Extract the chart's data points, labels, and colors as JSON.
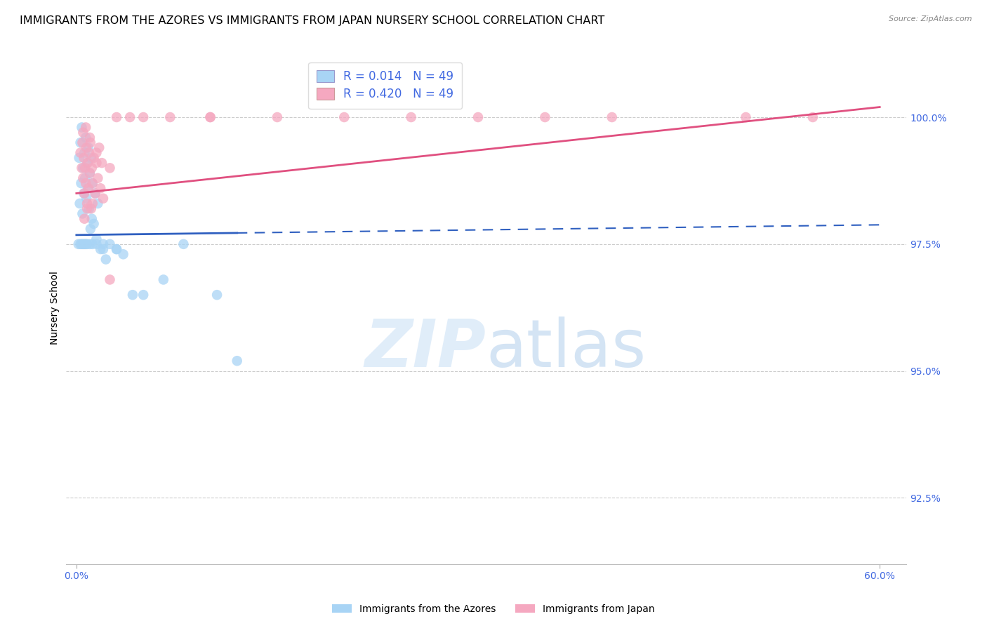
{
  "title": "IMMIGRANTS FROM THE AZORES VS IMMIGRANTS FROM JAPAN NURSERY SCHOOL CORRELATION CHART",
  "source": "Source: ZipAtlas.com",
  "ylabel": "Nursery School",
  "legend_r_blue": "R = 0.014",
  "legend_n_blue": "N = 49",
  "legend_r_pink": "R = 0.420",
  "legend_n_pink": "N = 49",
  "legend_label_blue": "Immigrants from the Azores",
  "legend_label_pink": "Immigrants from Japan",
  "blue_color": "#A8D4F5",
  "pink_color": "#F5A8C0",
  "blue_line_color": "#3060C0",
  "pink_line_color": "#E05080",
  "watermark_zip": "ZIP",
  "watermark_atlas": "atlas",
  "background_color": "#FFFFFF",
  "grid_color": "#CCCCCC",
  "tick_color": "#4169E1",
  "title_fontsize": 11.5,
  "axis_label_fontsize": 10,
  "tick_fontsize": 10,
  "ytick_values": [
    92.5,
    95.0,
    97.5,
    100.0
  ],
  "ytick_labels": [
    "92.5%",
    "95.0%",
    "97.5%",
    "100.0%"
  ],
  "ymin": 91.2,
  "ymax": 101.3,
  "xmin": -0.8,
  "xmax": 62.0,
  "blue_scatter_x": [
    0.15,
    0.2,
    0.25,
    0.3,
    0.35,
    0.4,
    0.45,
    0.5,
    0.55,
    0.6,
    0.65,
    0.7,
    0.75,
    0.8,
    0.85,
    0.9,
    0.95,
    1.0,
    1.05,
    1.1,
    1.15,
    1.2,
    1.3,
    1.4,
    1.5,
    1.6,
    1.8,
    2.0,
    2.2,
    2.5,
    3.0,
    3.5,
    4.2,
    5.0,
    6.5,
    8.0,
    10.5,
    12.0,
    0.3,
    0.4,
    0.5,
    0.6,
    0.7,
    0.8,
    1.0,
    1.2,
    1.5,
    2.0,
    3.0
  ],
  "blue_scatter_y": [
    97.5,
    99.2,
    98.3,
    99.5,
    98.7,
    99.8,
    98.1,
    99.0,
    98.5,
    99.3,
    98.8,
    99.6,
    98.4,
    99.1,
    98.6,
    99.4,
    98.2,
    98.9,
    97.8,
    99.2,
    98.0,
    98.7,
    97.9,
    98.5,
    97.6,
    98.3,
    97.4,
    97.5,
    97.2,
    97.5,
    97.4,
    97.3,
    96.5,
    96.5,
    96.8,
    97.5,
    96.5,
    95.2,
    97.5,
    97.5,
    97.5,
    97.5,
    97.5,
    97.5,
    97.5,
    97.5,
    97.5,
    97.4,
    97.4
  ],
  "pink_scatter_x": [
    0.3,
    0.4,
    0.45,
    0.5,
    0.55,
    0.6,
    0.65,
    0.7,
    0.75,
    0.8,
    0.85,
    0.9,
    0.95,
    1.0,
    1.05,
    1.1,
    1.15,
    1.2,
    1.3,
    1.4,
    1.5,
    1.6,
    1.7,
    1.8,
    1.9,
    2.0,
    2.5,
    3.0,
    4.0,
    5.0,
    7.0,
    10.0,
    15.0,
    20.0,
    25.0,
    30.0,
    35.0,
    40.0,
    50.0,
    55.0,
    0.5,
    0.6,
    0.7,
    0.8,
    1.0,
    1.2,
    1.5,
    2.5,
    10.0
  ],
  "pink_scatter_y": [
    99.3,
    99.0,
    99.5,
    98.8,
    99.2,
    98.5,
    99.0,
    98.7,
    99.4,
    98.3,
    99.1,
    98.6,
    99.3,
    98.9,
    99.5,
    98.2,
    99.0,
    98.7,
    99.2,
    98.5,
    99.3,
    98.8,
    99.4,
    98.6,
    99.1,
    98.4,
    99.0,
    100.0,
    100.0,
    100.0,
    100.0,
    100.0,
    100.0,
    100.0,
    100.0,
    100.0,
    100.0,
    100.0,
    100.0,
    100.0,
    99.7,
    98.0,
    99.8,
    98.2,
    99.6,
    98.3,
    99.1,
    96.8,
    100.0
  ],
  "blue_line_x0": 0.0,
  "blue_line_x1": 60.0,
  "blue_line_y0": 97.68,
  "blue_line_y1": 97.88,
  "pink_line_x0": 0.0,
  "pink_line_x1": 60.0,
  "pink_line_y0": 98.5,
  "pink_line_y1": 100.2,
  "blue_solid_end": 12.0,
  "blue_dash_start": 12.0
}
